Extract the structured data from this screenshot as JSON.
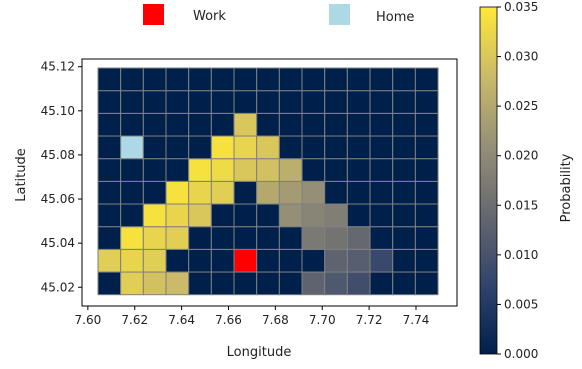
{
  "chart_data": {
    "type": "heatmap",
    "title": "",
    "xlabel": "Longitude",
    "ylabel": "Latitude",
    "colormap": "cividis",
    "colorbar": {
      "label": "Probability",
      "range": [
        0,
        0.035
      ],
      "ticks": [
        0.0,
        0.005,
        0.01,
        0.015,
        0.02,
        0.025,
        0.03,
        0.035
      ],
      "tick_labels": [
        "0.000",
        "0.005",
        "0.010",
        "0.015",
        "0.020",
        "0.025",
        "0.030",
        "0.035"
      ]
    },
    "xlim": [
      7.5975,
      7.7575
    ],
    "ylim": [
      45.0115,
      45.1235
    ],
    "xticks": [
      7.6,
      7.62,
      7.64,
      7.66,
      7.68,
      7.7,
      7.72,
      7.74
    ],
    "xtick_labels": [
      "7.60",
      "7.62",
      "7.64",
      "7.66",
      "7.68",
      "7.70",
      "7.72",
      "7.74"
    ],
    "yticks": [
      45.02,
      45.04,
      45.06,
      45.08,
      45.1,
      45.12
    ],
    "ytick_labels": [
      "45.02",
      "45.04",
      "45.06",
      "45.08",
      "45.10",
      "45.12"
    ],
    "grid": {
      "x_start": 7.6,
      "x_step": 0.01,
      "cols": 15,
      "y_start": 45.0135,
      "y_step": 0.01,
      "rows": 10
    },
    "cells": [
      {
        "col": 1,
        "row": 0,
        "value": 0.031
      },
      {
        "col": 2,
        "row": 0,
        "value": 0.029
      },
      {
        "col": 3,
        "row": 0,
        "value": 0.028
      },
      {
        "col": 9,
        "row": 0,
        "value": 0.013
      },
      {
        "col": 10,
        "row": 0,
        "value": 0.011
      },
      {
        "col": 11,
        "row": 0,
        "value": 0.009
      },
      {
        "col": 0,
        "row": 1,
        "value": 0.031
      },
      {
        "col": 1,
        "row": 1,
        "value": 0.032
      },
      {
        "col": 2,
        "row": 1,
        "value": 0.031
      },
      {
        "col": 10,
        "row": 1,
        "value": 0.013
      },
      {
        "col": 11,
        "row": 1,
        "value": 0.012
      },
      {
        "col": 12,
        "row": 1,
        "value": 0.008
      },
      {
        "col": 1,
        "row": 2,
        "value": 0.034
      },
      {
        "col": 2,
        "row": 2,
        "value": 0.032
      },
      {
        "col": 3,
        "row": 2,
        "value": 0.031
      },
      {
        "col": 9,
        "row": 2,
        "value": 0.017
      },
      {
        "col": 10,
        "row": 2,
        "value": 0.016
      },
      {
        "col": 11,
        "row": 2,
        "value": 0.014
      },
      {
        "col": 2,
        "row": 3,
        "value": 0.034
      },
      {
        "col": 3,
        "row": 3,
        "value": 0.032
      },
      {
        "col": 4,
        "row": 3,
        "value": 0.03
      },
      {
        "col": 8,
        "row": 3,
        "value": 0.021
      },
      {
        "col": 9,
        "row": 3,
        "value": 0.019
      },
      {
        "col": 10,
        "row": 3,
        "value": 0.018
      },
      {
        "col": 3,
        "row": 4,
        "value": 0.034
      },
      {
        "col": 4,
        "row": 4,
        "value": 0.032
      },
      {
        "col": 5,
        "row": 4,
        "value": 0.031
      },
      {
        "col": 7,
        "row": 4,
        "value": 0.025
      },
      {
        "col": 8,
        "row": 4,
        "value": 0.023
      },
      {
        "col": 9,
        "row": 4,
        "value": 0.021
      },
      {
        "col": 4,
        "row": 5,
        "value": 0.034
      },
      {
        "col": 5,
        "row": 5,
        "value": 0.033
      },
      {
        "col": 6,
        "row": 5,
        "value": 0.03
      },
      {
        "col": 7,
        "row": 5,
        "value": 0.029
      },
      {
        "col": 8,
        "row": 5,
        "value": 0.026
      },
      {
        "col": 5,
        "row": 6,
        "value": 0.034
      },
      {
        "col": 6,
        "row": 6,
        "value": 0.032
      },
      {
        "col": 7,
        "row": 6,
        "value": 0.03
      },
      {
        "col": 6,
        "row": 7,
        "value": 0.03
      }
    ],
    "markers": [
      {
        "name": "Work",
        "col": 6,
        "row": 1,
        "color": "#ff0000"
      },
      {
        "name": "Home",
        "col": 1,
        "row": 6,
        "color": "#add8e6"
      }
    ]
  },
  "legend": {
    "placement": "top",
    "items": [
      {
        "label": "Work",
        "color": "#ff0000"
      },
      {
        "label": "Home",
        "color": "#add8e6"
      }
    ]
  }
}
